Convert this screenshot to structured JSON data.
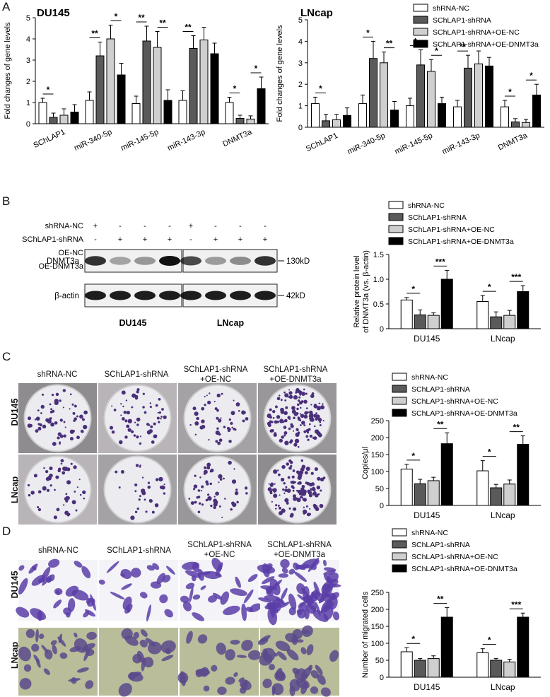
{
  "colors": {
    "shRNA-NC": "#ffffff",
    "SChLAP1-shRNA": "#5a5a5a",
    "SChLAP1-shRNA+OE-NC": "#cfcfcf",
    "SChLAP1-shRNA+OE-DNMT3a": "#000000"
  },
  "panels": {
    "A": "A",
    "B": "B",
    "C": "C",
    "D": "D"
  },
  "legend_labels": [
    "shRNA-NC",
    "SChLAP1-shRNA",
    "SChLAP1-shRNA+OE-NC",
    "SChLAP1-shRNA+OE-DNMT3a"
  ],
  "blot": {
    "row_labels": [
      "shRNA-NC",
      "SChLAP1-shRNA",
      "OE-NC",
      "OE-DNMT3a"
    ],
    "signs": [
      [
        "+",
        "-",
        "-",
        "-",
        "+",
        "-",
        "-",
        "-"
      ],
      [
        "-",
        "+",
        "+",
        "+",
        "-",
        "+",
        "+",
        "+"
      ],
      [
        "-",
        "-",
        "+",
        "-",
        "-",
        "-",
        "+",
        "-"
      ],
      [
        "-",
        "-",
        "-",
        "+",
        "-",
        "-",
        "-",
        "+"
      ]
    ],
    "bands": [
      "DNMT3a",
      "β-actin"
    ],
    "sizes": [
      "130kD",
      "42kD"
    ],
    "groups": [
      "DU145",
      "LNcap"
    ],
    "dnmt3a_intensity": [
      0.85,
      0.35,
      0.4,
      1.0,
      0.75,
      0.38,
      0.45,
      0.85
    ]
  },
  "conditions": {
    "c1": "shRNA-NC",
    "c2": "SChLAP1-shRNA",
    "c3a": "SChLAP1-shRNA",
    "c3b": "+OE-NC",
    "c4a": "SChLAP1-shRNA",
    "c4b": "+OE-DNMT3a"
  },
  "row_labels": {
    "du": "DU145",
    "ln": "LNcap"
  },
  "colony_counts": [
    [
      60,
      55,
      50,
      140
    ],
    [
      50,
      30,
      55,
      120
    ]
  ],
  "chart_data": [
    {
      "type": "bar",
      "title": "DU145",
      "ylabel": "Fold changes of gene levels",
      "ylim": [
        0,
        5
      ],
      "yticks": [
        "0",
        "1",
        "2",
        "3",
        "4",
        "5"
      ],
      "categories": [
        "SChLAP1",
        "miR-340-5p",
        "miR-145-5p",
        "miR-143-3p",
        "DNMT3a"
      ],
      "series": [
        {
          "name": "shRNA-NC",
          "values": [
            1.0,
            1.1,
            0.95,
            1.1,
            1.0
          ],
          "errors": [
            0.2,
            0.4,
            0.35,
            0.45,
            0.25
          ]
        },
        {
          "name": "SChLAP1-shRNA",
          "values": [
            0.3,
            3.2,
            3.9,
            3.55,
            0.25
          ],
          "errors": [
            0.2,
            0.65,
            0.7,
            0.6,
            0.15
          ]
        },
        {
          "name": "SChLAP1-shRNA+OE-NC",
          "values": [
            0.4,
            4.0,
            3.6,
            3.95,
            0.22
          ],
          "errors": [
            0.3,
            0.65,
            0.75,
            0.6,
            0.15
          ]
        },
        {
          "name": "SChLAP1-shRNA+OE-DNMT3a",
          "values": [
            0.55,
            2.3,
            1.1,
            3.3,
            1.65
          ],
          "errors": [
            0.35,
            0.55,
            0.5,
            0.5,
            0.55
          ]
        }
      ],
      "significance": [
        {
          "cat": 0,
          "a": 0,
          "b": 1,
          "label": "*"
        },
        {
          "cat": 1,
          "a": 0,
          "b": 1,
          "label": "**"
        },
        {
          "cat": 1,
          "a": 2,
          "b": 3,
          "label": "*"
        },
        {
          "cat": 2,
          "a": 0,
          "b": 1,
          "label": "**"
        },
        {
          "cat": 2,
          "a": 2,
          "b": 3,
          "label": "**"
        },
        {
          "cat": 3,
          "a": 0,
          "b": 1,
          "label": "**"
        },
        {
          "cat": 4,
          "a": 0,
          "b": 1,
          "label": "*"
        },
        {
          "cat": 4,
          "a": 2,
          "b": 3,
          "label": "*"
        }
      ]
    },
    {
      "type": "bar",
      "title": "LNcap",
      "ylabel": "Fold changes of gene levels",
      "ylim": [
        0,
        5
      ],
      "yticks": [
        "0",
        "1",
        "2",
        "3",
        "4",
        "5"
      ],
      "categories": [
        "SChLAP1",
        "miR-340-5p",
        "miR-145-5p",
        "miR-143-3p",
        "DNMT3a"
      ],
      "series": [
        {
          "name": "shRNA-NC",
          "values": [
            1.1,
            1.1,
            1.0,
            0.95,
            0.95
          ],
          "errors": [
            0.3,
            0.4,
            0.35,
            0.3,
            0.3
          ]
        },
        {
          "name": "SChLAP1-shRNA",
          "values": [
            0.3,
            3.2,
            2.9,
            2.75,
            0.25
          ],
          "errors": [
            0.3,
            0.8,
            0.7,
            0.6,
            0.15
          ]
        },
        {
          "name": "SChLAP1-shRNA+OE-NC",
          "values": [
            0.35,
            3.0,
            2.6,
            2.95,
            0.22
          ],
          "errors": [
            0.25,
            0.5,
            0.55,
            0.6,
            0.15
          ]
        },
        {
          "name": "SChLAP1-shRNA+OE-DNMT3a",
          "values": [
            0.55,
            0.8,
            1.1,
            2.85,
            1.5
          ],
          "errors": [
            0.35,
            0.4,
            0.3,
            0.4,
            0.5
          ]
        }
      ],
      "significance": [
        {
          "cat": 0,
          "a": 0,
          "b": 1,
          "label": "*"
        },
        {
          "cat": 1,
          "a": 0,
          "b": 1,
          "label": "*"
        },
        {
          "cat": 1,
          "a": 2,
          "b": 3,
          "label": "**"
        },
        {
          "cat": 2,
          "a": 0,
          "b": 1,
          "label": "*"
        },
        {
          "cat": 2,
          "a": 2,
          "b": 3,
          "label": "*"
        },
        {
          "cat": 3,
          "a": 0,
          "b": 1,
          "label": "**"
        },
        {
          "cat": 4,
          "a": 0,
          "b": 1,
          "label": "*"
        },
        {
          "cat": 4,
          "a": 2,
          "b": 3,
          "label": "*"
        }
      ]
    },
    {
      "type": "bar",
      "title": "",
      "ylabel": "Relative protein level of DNMT3a (vs. β-actin)",
      "ylim": [
        0,
        1.5
      ],
      "yticks": [
        "0",
        "0.5",
        "1.0",
        "1.5"
      ],
      "categories": [
        "DU145",
        "LNcap"
      ],
      "series": [
        {
          "name": "shRNA-NC",
          "values": [
            0.58,
            0.55
          ],
          "errors": [
            0.05,
            0.12
          ]
        },
        {
          "name": "SChLAP1-shRNA",
          "values": [
            0.28,
            0.24
          ],
          "errors": [
            0.1,
            0.1
          ]
        },
        {
          "name": "SChLAP1-shRNA+OE-NC",
          "values": [
            0.27,
            0.27
          ],
          "errors": [
            0.05,
            0.1
          ]
        },
        {
          "name": "SChLAP1-shRNA+OE-DNMT3a",
          "values": [
            1.0,
            0.75
          ],
          "errors": [
            0.18,
            0.12
          ]
        }
      ],
      "significance": [
        {
          "cat": 0,
          "a": 0,
          "b": 1,
          "label": "*"
        },
        {
          "cat": 0,
          "a": 2,
          "b": 3,
          "label": "***"
        },
        {
          "cat": 1,
          "a": 0,
          "b": 1,
          "label": "*"
        },
        {
          "cat": 1,
          "a": 2,
          "b": 3,
          "label": "***"
        }
      ]
    },
    {
      "type": "bar",
      "title": "",
      "ylabel": "Copies/μl",
      "ylim": [
        0,
        250
      ],
      "yticks": [
        "0",
        "50",
        "100",
        "150",
        "200",
        "250"
      ],
      "categories": [
        "DU145",
        "LNcap"
      ],
      "series": [
        {
          "name": "shRNA-NC",
          "values": [
            107,
            102
          ],
          "errors": [
            14,
            30
          ]
        },
        {
          "name": "SChLAP1-shRNA",
          "values": [
            64,
            52
          ],
          "errors": [
            13,
            10
          ]
        },
        {
          "name": "SChLAP1-shRNA+OE-NC",
          "values": [
            73,
            63
          ],
          "errors": [
            10,
            12
          ]
        },
        {
          "name": "SChLAP1-shRNA+OE-DNMT3a",
          "values": [
            182,
            180
          ],
          "errors": [
            32,
            25
          ]
        }
      ],
      "significance": [
        {
          "cat": 0,
          "a": 0,
          "b": 1,
          "label": "*"
        },
        {
          "cat": 0,
          "a": 2,
          "b": 3,
          "label": "**"
        },
        {
          "cat": 1,
          "a": 0,
          "b": 1,
          "label": "*"
        },
        {
          "cat": 1,
          "a": 2,
          "b": 3,
          "label": "**"
        }
      ]
    },
    {
      "type": "bar",
      "title": "",
      "ylabel": "Number of migrated cells",
      "ylim": [
        0,
        250
      ],
      "yticks": [
        "0",
        "50",
        "100",
        "150",
        "200",
        "250"
      ],
      "categories": [
        "DU145",
        "LNcap"
      ],
      "series": [
        {
          "name": "shRNA-NC",
          "values": [
            75,
            72
          ],
          "errors": [
            12,
            12
          ]
        },
        {
          "name": "SChLAP1-shRNA",
          "values": [
            50,
            50
          ],
          "errors": [
            5,
            5
          ]
        },
        {
          "name": "SChLAP1-shRNA+OE-NC",
          "values": [
            55,
            45
          ],
          "errors": [
            8,
            8
          ]
        },
        {
          "name": "SChLAP1-shRNA+OE-DNMT3a",
          "values": [
            177,
            177
          ],
          "errors": [
            28,
            12
          ]
        }
      ],
      "significance": [
        {
          "cat": 0,
          "a": 0,
          "b": 1,
          "label": "*"
        },
        {
          "cat": 0,
          "a": 2,
          "b": 3,
          "label": "**"
        },
        {
          "cat": 1,
          "a": 0,
          "b": 1,
          "label": "*"
        },
        {
          "cat": 1,
          "a": 2,
          "b": 3,
          "label": "***"
        }
      ]
    }
  ]
}
